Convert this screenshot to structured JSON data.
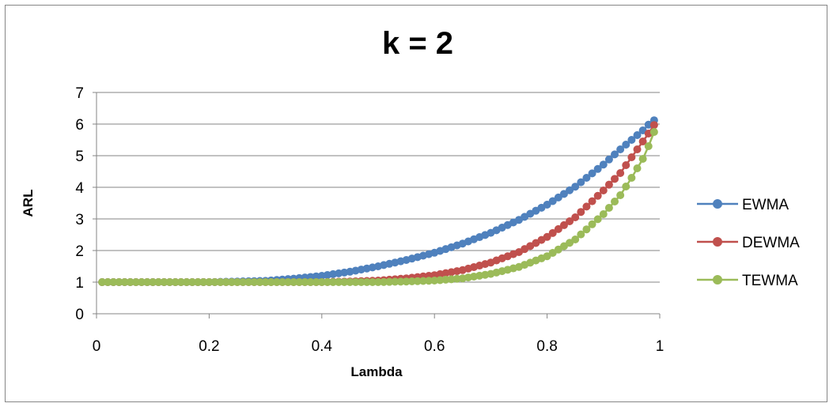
{
  "chart_data": {
    "type": "line",
    "title": "k = 2",
    "xlabel": "Lambda",
    "ylabel": "ARL",
    "xlim": [
      0,
      1
    ],
    "ylim": [
      0,
      7
    ],
    "x_ticks": [
      "0",
      "0.2",
      "0.4",
      "0.6",
      "0.8",
      "1"
    ],
    "y_ticks": [
      "0",
      "1",
      "2",
      "3",
      "4",
      "5",
      "6",
      "7"
    ],
    "grid": "horizontal",
    "legend_position": "right",
    "markers": "circle",
    "x": [
      0.01,
      0.1,
      0.2,
      0.3,
      0.35,
      0.4,
      0.45,
      0.5,
      0.55,
      0.6,
      0.65,
      0.7,
      0.75,
      0.8,
      0.85,
      0.9,
      0.93,
      0.95,
      0.97,
      0.98,
      0.99
    ],
    "series": [
      {
        "name": "EWMA",
        "color": "#4f81bd",
        "values": [
          1.0,
          1.0,
          1.0,
          1.04,
          1.11,
          1.2,
          1.33,
          1.5,
          1.7,
          1.93,
          2.22,
          2.56,
          2.97,
          3.45,
          4.02,
          4.72,
          5.2,
          5.5,
          5.8,
          5.98,
          6.12
        ]
      },
      {
        "name": "DEWMA",
        "color": "#c0504d",
        "values": [
          1.0,
          1.0,
          1.0,
          1.0,
          1.0,
          1.0,
          1.02,
          1.05,
          1.12,
          1.22,
          1.38,
          1.62,
          1.95,
          2.43,
          3.05,
          3.9,
          4.45,
          4.95,
          5.45,
          5.7,
          5.97
        ]
      },
      {
        "name": "TEWMA",
        "color": "#9bbb59",
        "values": [
          1.0,
          1.0,
          1.0,
          1.0,
          1.0,
          1.0,
          1.0,
          1.0,
          1.02,
          1.05,
          1.12,
          1.26,
          1.48,
          1.82,
          2.35,
          3.15,
          3.75,
          4.3,
          4.9,
          5.3,
          5.75
        ]
      }
    ]
  }
}
